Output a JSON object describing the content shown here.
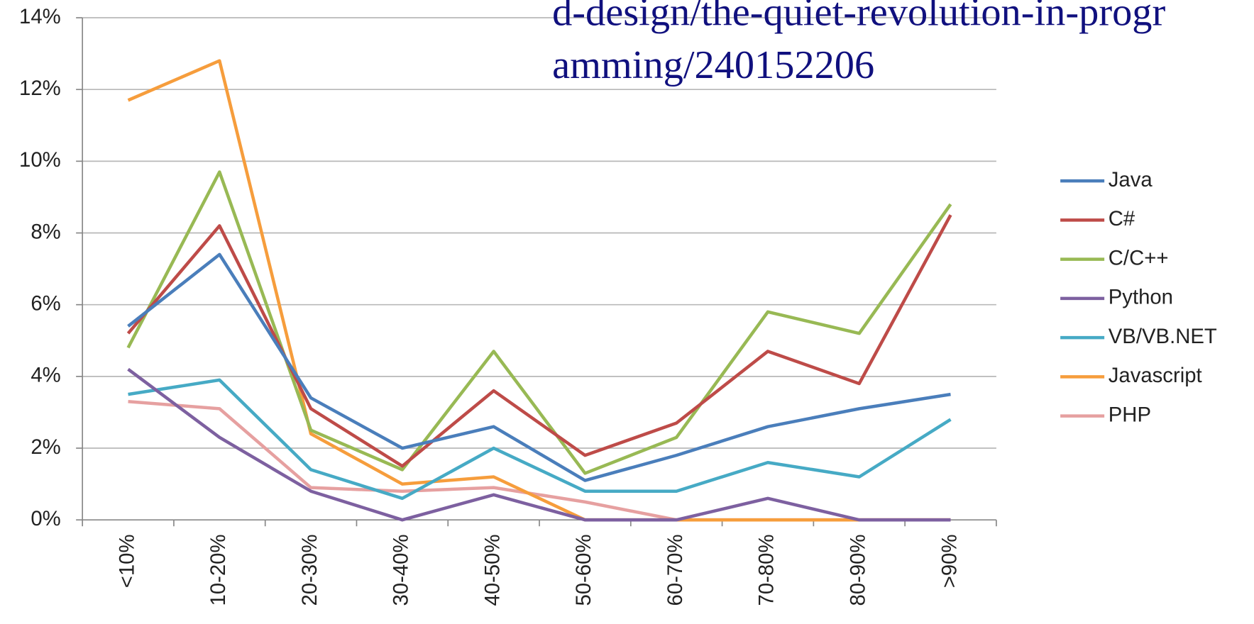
{
  "chart_data": {
    "type": "line",
    "annotations": [
      "d-design/the-quiet-revolution-in-progr",
      "amming/240152206"
    ],
    "categories": [
      "<10%",
      "10-20%",
      "20-30%",
      "30-40%",
      "40-50%",
      "50-60%",
      "60-70%",
      "70-80%",
      "80-90%",
      ">90%"
    ],
    "series": [
      {
        "name": "Java",
        "color": "#4a7ebb",
        "values": [
          5.4,
          7.4,
          3.4,
          2.0,
          2.6,
          1.1,
          1.8,
          2.6,
          3.1,
          3.5
        ]
      },
      {
        "name": "C#",
        "color": "#be4b48",
        "values": [
          5.2,
          8.2,
          3.1,
          1.5,
          3.6,
          1.8,
          2.7,
          4.7,
          3.8,
          8.5
        ]
      },
      {
        "name": "C/C++",
        "color": "#98b954",
        "values": [
          4.8,
          9.7,
          2.5,
          1.4,
          4.7,
          1.3,
          2.3,
          5.8,
          5.2,
          8.8
        ]
      },
      {
        "name": "Python",
        "color": "#7d60a0",
        "values": [
          4.2,
          2.3,
          0.8,
          0,
          0.7,
          0,
          0,
          0.6,
          0,
          0
        ]
      },
      {
        "name": "VB/VB.NET",
        "color": "#46aac5",
        "values": [
          3.5,
          3.9,
          1.4,
          0.6,
          2.0,
          0.8,
          0.8,
          1.6,
          1.2,
          2.8
        ]
      },
      {
        "name": "Javascript",
        "color": "#f69d3c",
        "values": [
          11.7,
          12.8,
          2.4,
          1.0,
          1.2,
          0,
          0,
          0,
          0,
          0
        ]
      },
      {
        "name": "PHP",
        "color": "#e6a0a0",
        "values": [
          3.3,
          3.1,
          0.9,
          0.8,
          0.9,
          0.5,
          0,
          0,
          0,
          0
        ]
      }
    ],
    "ylim": [
      0,
      14
    ],
    "yticks": [
      {
        "value": 0,
        "label": "0%"
      },
      {
        "value": 2,
        "label": "2%"
      },
      {
        "value": 4,
        "label": "4%"
      },
      {
        "value": 6,
        "label": "6%"
      },
      {
        "value": 8,
        "label": "8%"
      },
      {
        "value": 10,
        "label": "10%"
      },
      {
        "value": 12,
        "label": "12%"
      },
      {
        "value": 14,
        "label": "14%"
      }
    ],
    "grid": true,
    "legend": "right"
  }
}
